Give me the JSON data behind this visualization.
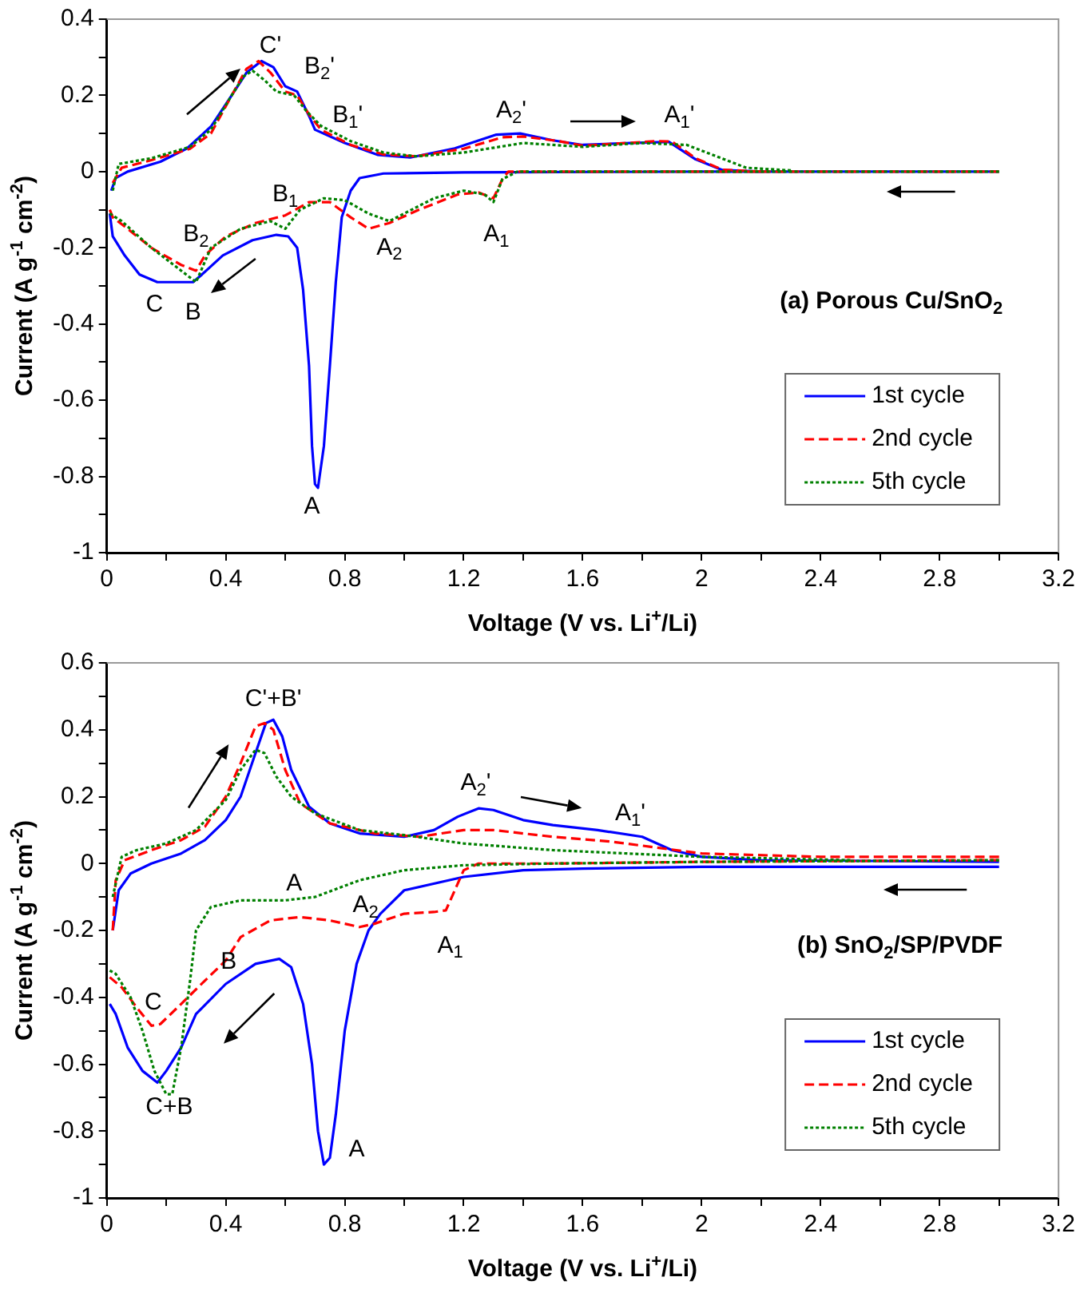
{
  "chart_data": [
    {
      "type": "line",
      "title": "(a) Porous Cu/SnO$_{2}$",
      "xlabel": "Voltage (V vs. Li$^{+}$/Li)",
      "ylabel": "Current (A g$^{-1}$ cm$^{-2}$)",
      "xlim": [
        0,
        3.2
      ],
      "ylim": [
        -1,
        0.4
      ],
      "xticks": [
        0,
        {
          "value": 0.2,
          "label": null
        },
        0.4,
        {
          "value": 0.6,
          "label": null
        },
        0.8,
        {
          "value": 1,
          "label": null
        },
        1.2,
        {
          "value": 1.4,
          "label": null
        },
        1.6,
        {
          "value": 1.8,
          "label": null
        },
        2,
        {
          "value": 2.2,
          "label": null
        },
        2.4,
        {
          "value": 2.6,
          "label": null
        },
        2.8,
        {
          "value": 3,
          "label": null
        },
        3.2
      ],
      "yticks": [
        -1,
        {
          "value": -0.9,
          "label": null
        },
        -0.8,
        {
          "value": -0.7,
          "label": null
        },
        -0.6,
        {
          "value": -0.5,
          "label": null
        },
        -0.4,
        {
          "value": -0.3,
          "label": null
        },
        -0.2,
        {
          "value": -0.1,
          "label": null
        },
        0,
        {
          "value": 0.1,
          "label": null
        },
        0.2,
        {
          "value": 0.3,
          "label": null
        },
        0.4
      ],
      "grid": false,
      "legend": "bottom right",
      "series": [
        {
          "name": "1st cycle",
          "color": "#0000ff",
          "line_style": "solid",
          "x": [
            0.01,
            0.02,
            0.06,
            0.11,
            0.17,
            0.29,
            0.32,
            0.39,
            0.49,
            0.57,
            0.61,
            0.64,
            0.66,
            0.68,
            0.69,
            0.7,
            0.71,
            0.73,
            0.75,
            0.77,
            0.79,
            0.82,
            0.85,
            0.93,
            1.2,
            2.0,
            3.0
          ],
          "values": [
            -0.11,
            -0.17,
            -0.22,
            -0.27,
            -0.29,
            -0.29,
            -0.27,
            -0.22,
            -0.18,
            -0.166,
            -0.17,
            -0.2,
            -0.31,
            -0.51,
            -0.72,
            -0.82,
            -0.83,
            -0.72,
            -0.51,
            -0.29,
            -0.12,
            -0.05,
            -0.017,
            -0.005,
            -0.002,
            0,
            0
          ]
        },
        {
          "color": "#0000ff",
          "line_style": "solid",
          "x": [
            0.015,
            0.03,
            0.07,
            0.18,
            0.27,
            0.35,
            0.42,
            0.47,
            0.52,
            0.56,
            0.6,
            0.64,
            0.68,
            0.7,
            0.8,
            0.91,
            1.02,
            1.17,
            1.31,
            1.39,
            1.5,
            1.6,
            1.76,
            1.89,
            1.98,
            2.07,
            2.2
          ],
          "values": [
            -0.05,
            -0.017,
            0,
            0.026,
            0.061,
            0.118,
            0.2,
            0.26,
            0.29,
            0.274,
            0.224,
            0.21,
            0.146,
            0.11,
            0.075,
            0.044,
            0.037,
            0.061,
            0.097,
            0.1,
            0.082,
            0.07,
            0.075,
            0.078,
            0.032,
            0.004,
            0
          ]
        },
        {
          "name": "2nd cycle",
          "color": "#ff0000",
          "line_style": "dashed",
          "x": [
            0.01,
            0.02,
            0.07,
            0.15,
            0.25,
            0.3,
            0.33,
            0.4,
            0.5,
            0.55,
            0.6,
            0.68,
            0.75,
            0.82,
            0.88,
            0.95,
            1.05,
            1.18,
            1.25,
            1.3,
            1.33,
            1.35,
            2.0,
            3.0
          ],
          "values": [
            -0.1,
            -0.12,
            -0.15,
            -0.2,
            -0.245,
            -0.26,
            -0.22,
            -0.17,
            -0.135,
            -0.125,
            -0.115,
            -0.08,
            -0.08,
            -0.12,
            -0.15,
            -0.135,
            -0.1,
            -0.06,
            -0.055,
            -0.07,
            -0.02,
            0,
            0,
            0
          ]
        },
        {
          "color": "#ff0000",
          "line_style": "dashed",
          "x": [
            0.02,
            0.05,
            0.15,
            0.28,
            0.35,
            0.42,
            0.47,
            0.51,
            0.55,
            0.6,
            0.64,
            0.68,
            0.72,
            0.82,
            0.93,
            1.04,
            1.2,
            1.33,
            1.4,
            1.52,
            1.6,
            1.75,
            1.85,
            1.9,
            1.98,
            2.07,
            2.2
          ],
          "values": [
            -0.03,
            0.01,
            0.03,
            0.06,
            0.1,
            0.2,
            0.27,
            0.29,
            0.26,
            0.21,
            0.2,
            0.15,
            0.11,
            0.07,
            0.045,
            0.04,
            0.06,
            0.09,
            0.092,
            0.08,
            0.068,
            0.075,
            0.08,
            0.079,
            0.035,
            0.005,
            0
          ]
        },
        {
          "name": "5th cycle",
          "color": "#008000",
          "line_style": "dotted",
          "x": [
            0.01,
            0.05,
            0.15,
            0.25,
            0.3,
            0.35,
            0.45,
            0.55,
            0.6,
            0.65,
            0.73,
            0.8,
            0.88,
            0.95,
            1.1,
            1.2,
            1.27,
            1.3,
            1.33,
            1.38,
            2.0,
            3.0
          ],
          "values": [
            -0.11,
            -0.13,
            -0.2,
            -0.26,
            -0.29,
            -0.2,
            -0.15,
            -0.13,
            -0.15,
            -0.1,
            -0.07,
            -0.075,
            -0.11,
            -0.13,
            -0.07,
            -0.05,
            -0.06,
            -0.08,
            -0.02,
            0,
            0,
            0
          ]
        },
        {
          "color": "#008000",
          "line_style": "dotted",
          "x": [
            0.02,
            0.04,
            0.15,
            0.28,
            0.35,
            0.42,
            0.46,
            0.49,
            0.53,
            0.57,
            0.63,
            0.67,
            0.72,
            0.82,
            0.93,
            1.04,
            1.2,
            1.4,
            1.6,
            1.8,
            1.95,
            2.05,
            2.15,
            2.3
          ],
          "values": [
            -0.05,
            0.02,
            0.035,
            0.065,
            0.11,
            0.2,
            0.25,
            0.265,
            0.24,
            0.21,
            0.2,
            0.16,
            0.12,
            0.08,
            0.05,
            0.04,
            0.05,
            0.075,
            0.065,
            0.075,
            0.07,
            0.04,
            0.01,
            0.003
          ]
        }
      ],
      "annotations": [
        "C'",
        "B$_{2}$'",
        "B$_{1}$'",
        "A$_{2}$'",
        "A$_{1}$'",
        "B$_{1}$",
        "B$_{2}$",
        "A$_{2}$",
        "A$_{1}$",
        "C",
        "B",
        "A"
      ]
    },
    {
      "type": "line",
      "title": "(b) SnO$_{2}$/SP/PVDF",
      "xlabel": "Voltage (V vs. Li$^{+}$/Li)",
      "ylabel": "Current (A g$^{-1}$ cm$^{-2}$)",
      "xlim": [
        0,
        3.2
      ],
      "ylim": [
        -1,
        0.6
      ],
      "xticks": [
        0,
        {
          "value": 0.2,
          "label": null
        },
        0.4,
        {
          "value": 0.6,
          "label": null
        },
        0.8,
        {
          "value": 1,
          "label": null
        },
        1.2,
        {
          "value": 1.4,
          "label": null
        },
        1.6,
        {
          "value": 1.8,
          "label": null
        },
        2,
        {
          "value": 2.2,
          "label": null
        },
        2.4,
        {
          "value": 2.6,
          "label": null
        },
        2.8,
        {
          "value": 3,
          "label": null
        },
        3.2
      ],
      "yticks": [
        -1,
        {
          "value": -0.9,
          "label": null
        },
        -0.8,
        {
          "value": -0.7,
          "label": null
        },
        -0.6,
        {
          "value": -0.5,
          "label": null
        },
        -0.4,
        {
          "value": -0.3,
          "label": null
        },
        -0.2,
        {
          "value": -0.1,
          "label": null
        },
        0,
        {
          "value": 0.1,
          "label": null
        },
        0.2,
        {
          "value": 0.3,
          "label": null
        },
        0.4,
        {
          "value": 0.5,
          "label": null
        },
        0.6
      ],
      "grid": false,
      "legend": "bottom right",
      "series": [
        {
          "name": "1st cycle",
          "color": "#0000ff",
          "line_style": "solid",
          "x": [
            0.01,
            0.03,
            0.07,
            0.12,
            0.17,
            0.2,
            0.25,
            0.3,
            0.4,
            0.5,
            0.58,
            0.62,
            0.66,
            0.69,
            0.71,
            0.73,
            0.75,
            0.77,
            0.8,
            0.84,
            0.88,
            0.92,
            1.0,
            1.2,
            1.4,
            1.6,
            2.0,
            3.0
          ],
          "values": [
            -0.42,
            -0.45,
            -0.55,
            -0.62,
            -0.655,
            -0.62,
            -0.55,
            -0.45,
            -0.36,
            -0.3,
            -0.285,
            -0.31,
            -0.42,
            -0.6,
            -0.8,
            -0.9,
            -0.88,
            -0.75,
            -0.5,
            -0.3,
            -0.2,
            -0.15,
            -0.08,
            -0.04,
            -0.02,
            -0.015,
            -0.01,
            -0.01
          ]
        },
        {
          "color": "#0000ff",
          "line_style": "solid",
          "x": [
            0.02,
            0.04,
            0.08,
            0.15,
            0.25,
            0.33,
            0.4,
            0.45,
            0.5,
            0.535,
            0.56,
            0.59,
            0.62,
            0.68,
            0.75,
            0.85,
            1.0,
            1.1,
            1.18,
            1.25,
            1.3,
            1.4,
            1.5,
            1.65,
            1.8,
            1.9,
            2.0,
            2.2,
            3.0
          ],
          "values": [
            -0.2,
            -0.08,
            -0.03,
            0,
            0.03,
            0.07,
            0.13,
            0.2,
            0.33,
            0.42,
            0.43,
            0.38,
            0.28,
            0.17,
            0.12,
            0.09,
            0.08,
            0.1,
            0.14,
            0.165,
            0.16,
            0.13,
            0.115,
            0.1,
            0.08,
            0.04,
            0.02,
            0.01,
            0.005
          ]
        },
        {
          "name": "2nd cycle",
          "color": "#ff0000",
          "line_style": "dashed",
          "x": [
            0.01,
            0.05,
            0.1,
            0.15,
            0.18,
            0.25,
            0.33,
            0.4,
            0.45,
            0.55,
            0.65,
            0.75,
            0.85,
            0.9,
            1.0,
            1.1,
            1.14,
            1.17,
            1.2,
            1.25,
            1.5,
            2.0,
            3.0
          ],
          "values": [
            -0.34,
            -0.37,
            -0.43,
            -0.485,
            -0.48,
            -0.42,
            -0.35,
            -0.29,
            -0.22,
            -0.17,
            -0.16,
            -0.17,
            -0.19,
            -0.18,
            -0.15,
            -0.145,
            -0.14,
            -0.08,
            -0.02,
            0,
            0,
            0.005,
            0.01
          ]
        },
        {
          "color": "#ff0000",
          "line_style": "dashed",
          "x": [
            0.02,
            0.03,
            0.06,
            0.15,
            0.25,
            0.33,
            0.4,
            0.45,
            0.5,
            0.53,
            0.56,
            0.6,
            0.65,
            0.75,
            0.9,
            1.05,
            1.2,
            1.3,
            1.5,
            1.7,
            2.0,
            2.4,
            3.0
          ],
          "values": [
            -0.2,
            -0.05,
            0.01,
            0.04,
            0.07,
            0.11,
            0.2,
            0.3,
            0.41,
            0.42,
            0.4,
            0.28,
            0.18,
            0.12,
            0.09,
            0.08,
            0.1,
            0.1,
            0.08,
            0.065,
            0.03,
            0.02,
            0.02
          ]
        },
        {
          "name": "5th cycle",
          "color": "#008000",
          "line_style": "dotted",
          "x": [
            0.01,
            0.03,
            0.08,
            0.12,
            0.16,
            0.2,
            0.22,
            0.25,
            0.28,
            0.3,
            0.35,
            0.45,
            0.6,
            0.7,
            0.85,
            1.0,
            1.2,
            1.5,
            2.0,
            3.0
          ],
          "values": [
            -0.32,
            -0.33,
            -0.4,
            -0.5,
            -0.62,
            -0.69,
            -0.69,
            -0.55,
            -0.35,
            -0.2,
            -0.13,
            -0.11,
            -0.11,
            -0.1,
            -0.05,
            -0.02,
            -0.005,
            0,
            0.005,
            0.01
          ]
        },
        {
          "color": "#008000",
          "line_style": "dotted",
          "x": [
            0.02,
            0.05,
            0.1,
            0.2,
            0.3,
            0.4,
            0.45,
            0.5,
            0.53,
            0.57,
            0.62,
            0.7,
            0.85,
            1.0,
            1.2,
            1.5,
            2.0,
            2.5
          ],
          "values": [
            -0.1,
            0.02,
            0.04,
            0.06,
            0.1,
            0.19,
            0.28,
            0.34,
            0.33,
            0.26,
            0.2,
            0.15,
            0.1,
            0.085,
            0.06,
            0.04,
            0.02,
            0.01
          ]
        }
      ],
      "annotations": [
        "C'+B'",
        "A$_{2}$'",
        "A$_{1}$'",
        "A",
        "A$_{2}$",
        "A$_{1}$",
        "B",
        "C",
        "C+B",
        "A"
      ]
    }
  ]
}
